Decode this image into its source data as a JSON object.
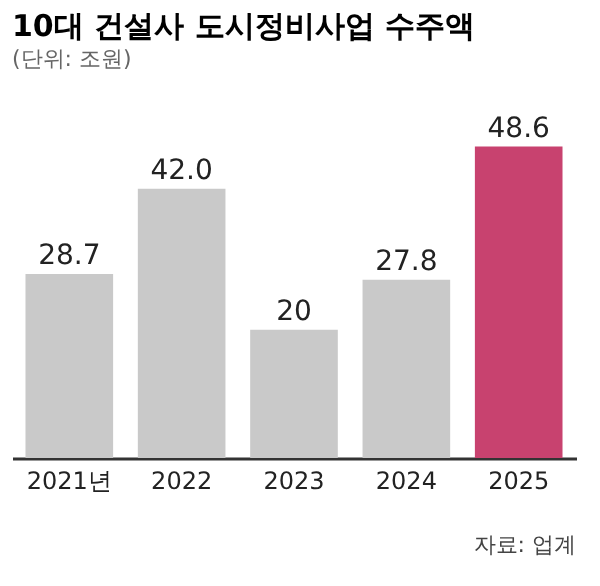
{
  "chart_data": {
    "type": "bar",
    "title": "10대 건설사 도시정비사업 수주액",
    "subtitle": "(단위: 조원)",
    "categories": [
      "2021년",
      "2022",
      "2023",
      "2024",
      "2025"
    ],
    "values": [
      28.7,
      42.0,
      20,
      27.8,
      48.6
    ],
    "value_labels": [
      "28.7",
      "42.0",
      "20",
      "27.8",
      "48.6"
    ],
    "colors": [
      "#c9c9c9",
      "#c9c9c9",
      "#c9c9c9",
      "#c9c9c9",
      "#c8426f"
    ],
    "annotations": [
      "자료: 업계"
    ],
    "grid": false
  }
}
